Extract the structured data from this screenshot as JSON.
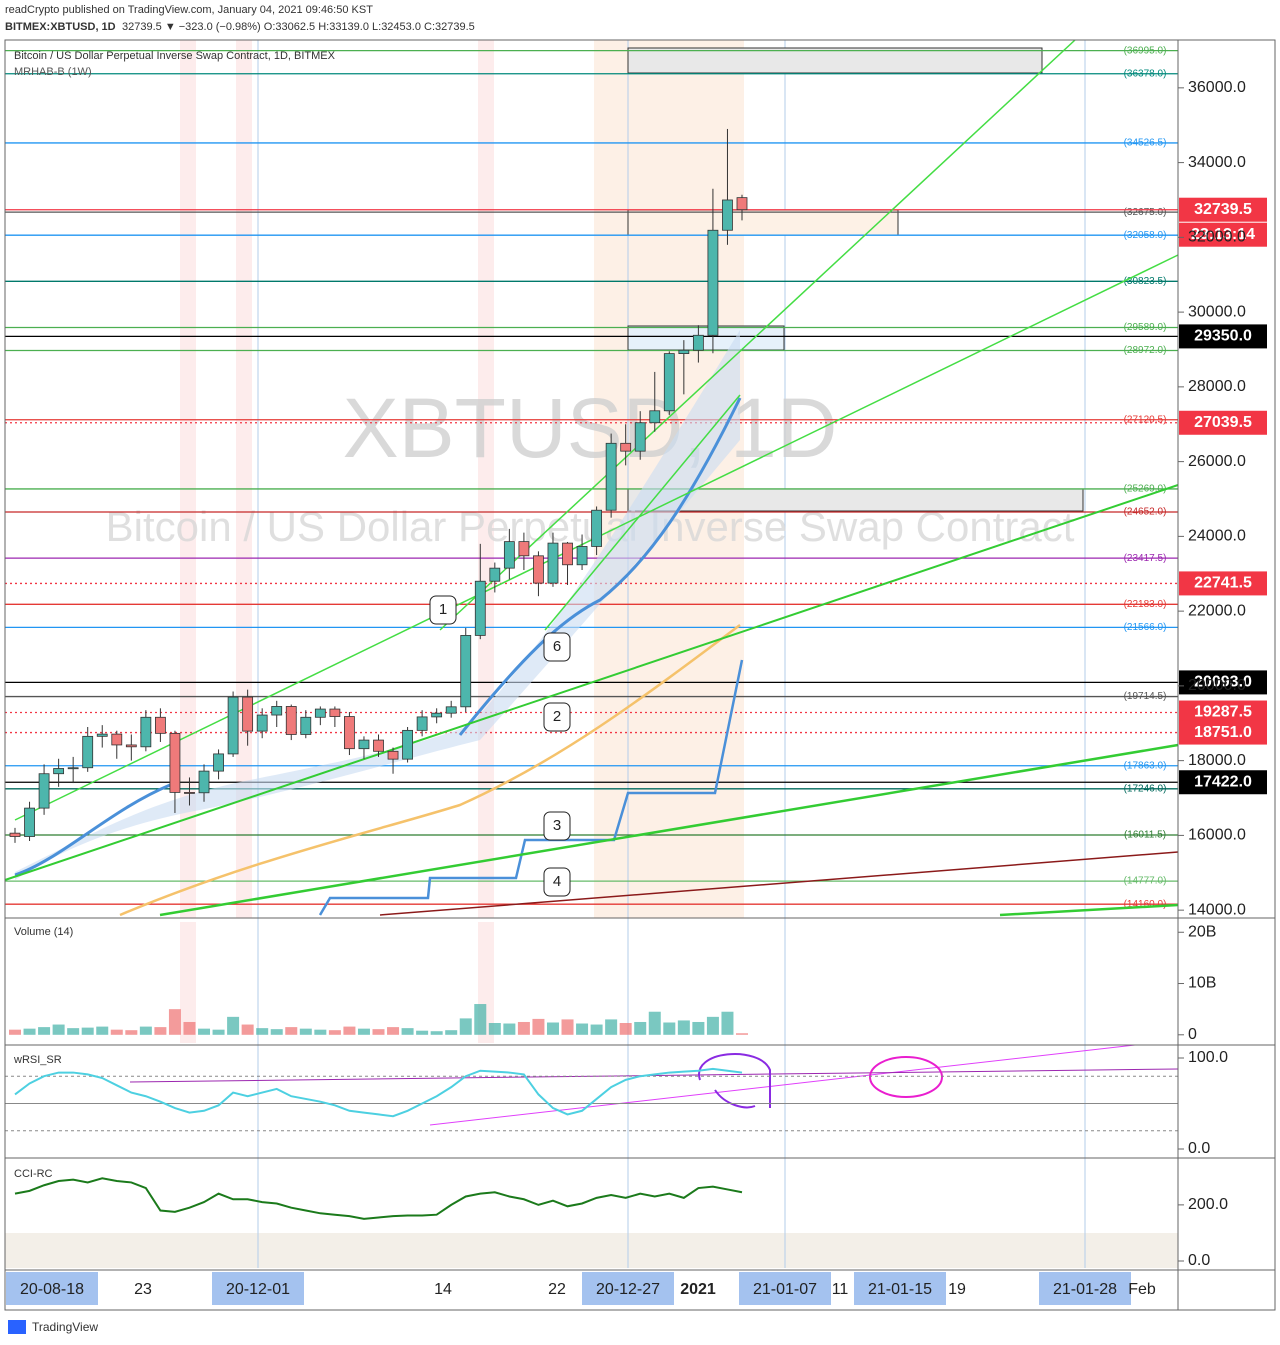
{
  "header": {
    "publisher": "readCrypto published on TradingView.com, January 04, 2021 09:46:50 KST",
    "symbol": "BITMEX:XBTUSD, 1D",
    "quote": "32739.5 ▼ −323.0 (−0.98%) O:33062.5 H:33139.0 L:32453.0 C:32739.5"
  },
  "chart_data": [
    {
      "type": "candlestick",
      "title": "Bitcoin / US Dollar Perpetual Inverse Swap Contract, 1D, BITMEX",
      "subtitle": "MRHAB-B (1W)",
      "watermark": "XBTUSD, 1D",
      "watermark_2": "Bitcoin / US Dollar Perpetual Inverse Swap Contract",
      "up_color": "#4db6ac",
      "down_color": "#ef7a7a",
      "open": [
        16060,
        15970,
        16730,
        17650,
        17790,
        17810,
        18650,
        18710,
        18420,
        18370,
        19160,
        18730,
        17150,
        17140,
        17720,
        18180,
        19700,
        18790,
        19220,
        19450,
        18700,
        19160,
        19380,
        19180,
        18320,
        18550,
        18250,
        18040,
        18810,
        19170,
        19270,
        19440,
        21350,
        22800,
        23150,
        23860,
        23480,
        22750,
        23820,
        23240,
        23730,
        24700,
        26490,
        26280,
        27040,
        27360,
        28890,
        28980,
        29380,
        32190,
        33062.5
      ],
      "high": [
        16200,
        16900,
        17900,
        18050,
        18100,
        18900,
        18950,
        18800,
        18700,
        19350,
        19400,
        18800,
        17550,
        17900,
        18300,
        19850,
        19900,
        19400,
        19600,
        19500,
        19350,
        19450,
        19450,
        19300,
        18650,
        18700,
        18350,
        18900,
        19350,
        19400,
        19600,
        21550,
        23800,
        23300,
        24200,
        24100,
        23600,
        24100,
        23850,
        24050,
        24800,
        26750,
        27000,
        27350,
        28400,
        28950,
        29250,
        29650,
        33300,
        34900,
        33139
      ],
      "low": [
        15800,
        15850,
        16550,
        17300,
        17400,
        17700,
        18350,
        18050,
        18000,
        18250,
        18500,
        16600,
        16800,
        16900,
        17500,
        18100,
        18400,
        18600,
        18900,
        18550,
        18600,
        18950,
        18900,
        18150,
        18050,
        18100,
        17650,
        17950,
        18650,
        19000,
        19150,
        19300,
        21250,
        22500,
        22850,
        23100,
        22400,
        22650,
        22700,
        23100,
        23500,
        24500,
        25900,
        26050,
        26800,
        27250,
        27800,
        28650,
        28900,
        31800,
        32453
      ],
      "close": [
        15970,
        16730,
        17650,
        17790,
        17810,
        18650,
        18710,
        18420,
        18370,
        19160,
        18730,
        17150,
        17140,
        17720,
        18180,
        19700,
        18790,
        19220,
        19450,
        18700,
        19160,
        19380,
        19180,
        18320,
        18550,
        18250,
        18040,
        18810,
        19170,
        19270,
        19440,
        21350,
        22800,
        23150,
        23860,
        23480,
        22750,
        23820,
        23240,
        23730,
        24700,
        26490,
        26280,
        27040,
        27360,
        28890,
        28980,
        29380,
        32190,
        33000,
        32739.5
      ],
      "ylim": [
        13790,
        37280
      ],
      "yticks": [
        {
          "value": 14000,
          "label": "14000.0"
        },
        {
          "value": 16000,
          "label": "16000.0"
        },
        {
          "value": 18000,
          "label": "18000.0"
        },
        {
          "value": 20000,
          "label": "20000.0"
        },
        {
          "value": 22000,
          "label": "22000.0"
        },
        {
          "value": 24000,
          "label": "24000.0"
        },
        {
          "value": 26000,
          "label": "26000.0"
        },
        {
          "value": 28000,
          "label": "28000.0"
        },
        {
          "value": 30000,
          "label": "30000.0"
        },
        {
          "value": 32000,
          "label": "32000.0"
        },
        {
          "value": 34000,
          "label": "34000.0"
        },
        {
          "value": 36000,
          "label": "36000.0"
        }
      ],
      "levels": [
        {
          "value": 36995,
          "label": "(36995.0)",
          "color": "#4caf50"
        },
        {
          "value": 36378,
          "label": "(36378.0)",
          "color": "#00897b"
        },
        {
          "value": 34526.5,
          "label": "(34526.5)",
          "color": "#2196f3"
        },
        {
          "value": 32675,
          "label": "(32675.0)",
          "color": "#555555"
        },
        {
          "value": 32058,
          "label": "(32058.0)",
          "color": "#2196f3"
        },
        {
          "value": 30823.5,
          "label": "(30823.5)",
          "color": "#00796b"
        },
        {
          "value": 29589,
          "label": "(29589.0)",
          "color": "#4caf50"
        },
        {
          "value": 28972,
          "label": "(28972.0)",
          "color": "#4caf50"
        },
        {
          "value": 27120.5,
          "label": "(27120.5)",
          "color": "#e53935"
        },
        {
          "value": 25269,
          "label": "(25269.0)",
          "color": "#4caf50"
        },
        {
          "value": 24652,
          "label": "(24652.0)",
          "color": "#c62828"
        },
        {
          "value": 23417.5,
          "label": "(23417.5)",
          "color": "#9c27b0"
        },
        {
          "value": 22183,
          "label": "(22183.0)",
          "color": "#e53935"
        },
        {
          "value": 21566,
          "label": "(21566.0)",
          "color": "#2196f3"
        },
        {
          "value": 19714.5,
          "label": "(19714.5)",
          "color": "#555555"
        },
        {
          "value": 17863,
          "label": "(17863.0)",
          "color": "#2196f3"
        },
        {
          "value": 17246,
          "label": "(17246.0)",
          "color": "#00695c"
        },
        {
          "value": 16011.5,
          "label": "(16011.5)",
          "color": "#2e7d32"
        },
        {
          "value": 14777,
          "label": "(14777.0)",
          "color": "#66bb6a"
        },
        {
          "value": 14160,
          "label": "(14160.0)",
          "color": "#e53935"
        }
      ],
      "price_tags": [
        {
          "value": 32739.5,
          "label": "32739.5",
          "color": "#f23645",
          "style": "solid"
        },
        {
          "value": 29350,
          "label": "29350.0",
          "color": "#000000",
          "style": "solid"
        },
        {
          "value": 27039.5,
          "label": "27039.5",
          "color": "#f23645",
          "style": "dotted"
        },
        {
          "value": 22741.5,
          "label": "22741.5",
          "color": "#f23645",
          "style": "dotted"
        },
        {
          "value": 20093,
          "label": "20093.0",
          "color": "#000000",
          "style": "solid"
        },
        {
          "value": 19287.5,
          "label": "19287.5",
          "color": "#f23645",
          "style": "dotted"
        },
        {
          "value": 18751,
          "label": "18751.0",
          "color": "#f23645",
          "style": "dotted"
        },
        {
          "value": 17422,
          "label": "17422.0",
          "color": "#000000",
          "style": "solid"
        }
      ],
      "countdown": "23:13:14",
      "callouts": [
        "1",
        "6",
        "2",
        "3",
        "4"
      ]
    },
    {
      "type": "bar",
      "title": "Volume (14)",
      "values": [
        1.0,
        1.2,
        1.5,
        2.0,
        1.3,
        1.4,
        1.6,
        1.0,
        0.9,
        1.6,
        1.5,
        5.0,
        2.5,
        1.2,
        1.0,
        3.5,
        2.0,
        1.3,
        1.1,
        1.5,
        1.2,
        1.0,
        0.9,
        1.6,
        1.2,
        1.1,
        1.5,
        1.3,
        0.8,
        0.7,
        0.9,
        3.2,
        6.0,
        2.3,
        2.2,
        2.5,
        3.1,
        2.4,
        3.0,
        2.2,
        2.0,
        3.0,
        2.3,
        2.5,
        4.5,
        2.4,
        2.8,
        2.5,
        3.5,
        4.5,
        0.3
      ],
      "ylim": [
        -1.6,
        22
      ],
      "yticks": [
        0,
        {
          "value": 10,
          "label": "10B"
        },
        {
          "value": 20,
          "label": "20B"
        }
      ]
    },
    {
      "type": "line",
      "title": "wRSI_SR",
      "color": "#4dd0e1",
      "values": [
        60,
        72,
        80,
        84,
        84,
        82,
        78,
        70,
        62,
        58,
        52,
        45,
        40,
        42,
        48,
        62,
        58,
        62,
        66,
        58,
        55,
        52,
        48,
        42,
        40,
        38,
        36,
        42,
        50,
        58,
        68,
        80,
        86,
        85,
        84,
        82,
        60,
        45,
        38,
        42,
        55,
        68,
        76,
        80,
        82,
        84,
        85,
        86,
        88,
        86,
        84
      ],
      "ylim": [
        -8.8,
        111
      ],
      "yticks": [
        {
          "value": 0,
          "label": "0.0"
        },
        {
          "value": 100,
          "label": "100.0"
        }
      ]
    },
    {
      "type": "line",
      "title": "CCI-RC",
      "color": "#1b7a1b",
      "values": [
        240,
        250,
        270,
        285,
        290,
        280,
        295,
        285,
        280,
        260,
        180,
        175,
        190,
        210,
        240,
        220,
        220,
        210,
        205,
        190,
        180,
        170,
        165,
        160,
        150,
        155,
        160,
        162,
        162,
        165,
        200,
        230,
        240,
        245,
        230,
        220,
        200,
        215,
        195,
        205,
        225,
        235,
        225,
        240,
        230,
        240,
        225,
        260,
        265,
        255,
        245
      ],
      "ylim": [
        -25,
        360
      ],
      "yticks": [
        {
          "value": 0,
          "label": "0.0"
        },
        {
          "value": 200,
          "label": "200.0"
        }
      ]
    }
  ],
  "time_axis": [
    {
      "text": "20-08-18",
      "highlighted": true
    },
    {
      "text": "23",
      "highlighted": false
    },
    {
      "text": "20-12-01",
      "highlighted": true
    },
    {
      "text": "14",
      "highlighted": false
    },
    {
      "text": "22",
      "highlighted": false
    },
    {
      "text": "20-12-27",
      "highlighted": true
    },
    {
      "text": "2021",
      "highlighted": false
    },
    {
      "text": "21-01-07",
      "highlighted": true
    },
    {
      "text": "11",
      "highlighted": false
    },
    {
      "text": "21-01-15",
      "highlighted": true
    },
    {
      "text": "19",
      "highlighted": false
    },
    {
      "text": "21-01-28",
      "highlighted": true
    },
    {
      "text": "Feb",
      "highlighted": false
    }
  ],
  "footer": "TradingView"
}
